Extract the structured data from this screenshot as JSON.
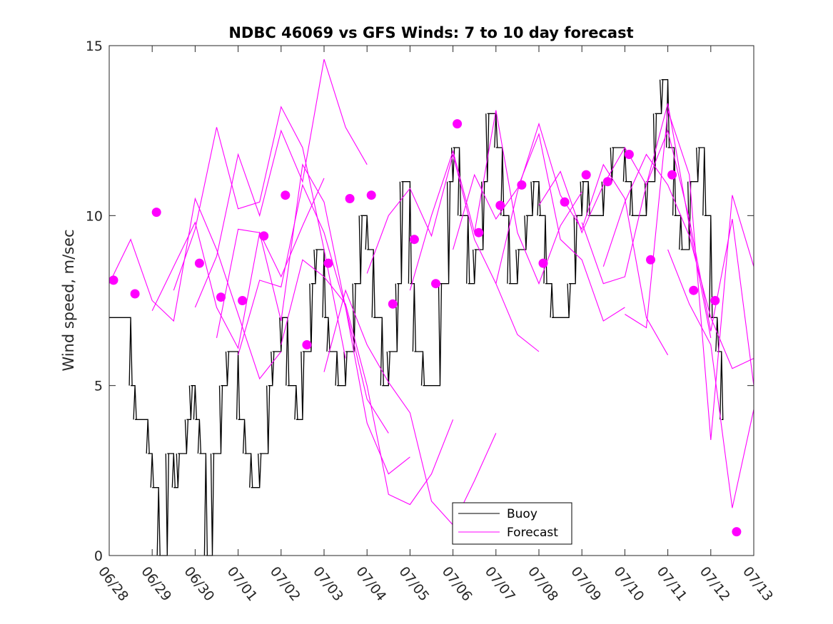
{
  "chart_data": {
    "type": "line",
    "title": "NDBC 46069 vs GFS Winds: 7 to 10 day forecast",
    "ylabel": "Wind speed, m/sec",
    "xlabel": "",
    "xlim": [
      0,
      15
    ],
    "ylim": [
      0,
      15
    ],
    "x_unit": "days since 06/28",
    "xticks": [
      "06/28",
      "06/29",
      "06/30",
      "07/01",
      "07/02",
      "07/03",
      "07/04",
      "07/05",
      "07/06",
      "07/07",
      "07/08",
      "07/09",
      "07/10",
      "07/11",
      "07/12",
      "07/13"
    ],
    "yticks": [
      0,
      5,
      10,
      15
    ],
    "legend": {
      "placement": "bottom-center",
      "entries": [
        "Buoy",
        "Forecast"
      ]
    },
    "colors": {
      "buoy": "#000000",
      "forecast": "#ff00ff"
    },
    "buoy": {
      "name": "Buoy",
      "x": [
        0,
        0.5,
        0.6,
        0.9,
        1.0,
        1.15,
        1.35,
        1.5,
        1.6,
        1.8,
        1.9,
        2.0,
        2.1,
        2.25,
        2.4,
        2.6,
        2.75,
        3.0,
        3.15,
        3.3,
        3.5,
        3.7,
        3.8,
        4.0,
        4.15,
        4.35,
        4.5,
        4.7,
        4.8,
        5.0,
        5.1,
        5.3,
        5.5,
        5.7,
        5.85,
        6.0,
        6.15,
        6.35,
        6.5,
        6.7,
        6.8,
        7.0,
        7.1,
        7.3,
        7.5,
        7.7,
        7.9,
        8.0,
        8.15,
        8.35,
        8.5,
        8.7,
        8.8,
        9.0,
        9.15,
        9.3,
        9.5,
        9.7,
        9.85,
        10.0,
        10.15,
        10.3,
        10.5,
        10.7,
        10.85,
        11.0,
        11.15,
        11.3,
        11.5,
        11.7,
        11.85,
        12.0,
        12.15,
        12.3,
        12.5,
        12.7,
        12.85,
        13.0,
        13.15,
        13.3,
        13.5,
        13.7,
        13.85,
        14.0,
        14.15,
        14.25
      ],
      "y": [
        7,
        5,
        4,
        3,
        2,
        0,
        3,
        2,
        3,
        4,
        5,
        4,
        3,
        0,
        3,
        5,
        6,
        4,
        3,
        2,
        3,
        5,
        6,
        7,
        5,
        4,
        6,
        8,
        9,
        7,
        6,
        5,
        6,
        8,
        10,
        9,
        7,
        5,
        6,
        8,
        11,
        8,
        6,
        5,
        5,
        8,
        11,
        12,
        10,
        8,
        9,
        11,
        13,
        12,
        10,
        8,
        9,
        10,
        11,
        10,
        8,
        7,
        7,
        8,
        10,
        11,
        10,
        10,
        11,
        12,
        12,
        11,
        10,
        10,
        11,
        13,
        14,
        12,
        10,
        9,
        11,
        12,
        10,
        7,
        6,
        4
      ]
    },
    "forecast_points": {
      "name": "Forecast",
      "x": [
        0.1,
        0.6,
        1.1,
        2.1,
        2.6,
        3.1,
        3.6,
        4.1,
        4.6,
        5.1,
        5.6,
        6.1,
        6.6,
        7.1,
        7.6,
        8.1,
        8.6,
        9.1,
        9.6,
        10.1,
        10.6,
        11.1,
        11.6,
        12.1,
        12.6,
        13.1,
        13.6,
        14.1,
        14.6
      ],
      "y": [
        8.1,
        7.7,
        10.1,
        8.6,
        7.6,
        7.5,
        9.4,
        10.6,
        6.2,
        8.6,
        10.5,
        10.6,
        7.4,
        9.3,
        8.0,
        12.7,
        9.5,
        10.3,
        10.9,
        8.6,
        10.4,
        11.2,
        11.0,
        11.8,
        8.7,
        11.2,
        7.8,
        7.5,
        0.7
      ]
    },
    "forecast_runs": [
      {
        "x": [
          0.0,
          0.5,
          1.0,
          1.5,
          2.0,
          2.5,
          3.0,
          3.5,
          4.0
        ],
        "y": [
          8.0,
          9.3,
          7.5,
          6.9,
          10.5,
          9.0,
          7.1,
          5.2,
          6.0
        ]
      },
      {
        "x": [
          1.0,
          1.5,
          2.0,
          2.5,
          3.0,
          3.5,
          4.0,
          4.5,
          5.0
        ],
        "y": [
          7.2,
          8.5,
          9.8,
          7.3,
          6.1,
          9.5,
          8.2,
          9.7,
          11.1
        ]
      },
      {
        "x": [
          1.5,
          2.0,
          2.5,
          3.0,
          3.5,
          4.0,
          4.5,
          5.0,
          5.5
        ],
        "y": [
          7.8,
          9.6,
          12.6,
          10.2,
          10.4,
          13.2,
          12.0,
          9.0,
          5.8
        ]
      },
      {
        "x": [
          2.0,
          2.5,
          3.0,
          3.5,
          4.0,
          4.5,
          5.0,
          5.5,
          6.0
        ],
        "y": [
          7.3,
          8.8,
          11.8,
          10.0,
          12.5,
          11.0,
          14.6,
          12.6,
          11.5
        ]
      },
      {
        "x": [
          2.5,
          3.0,
          3.5,
          4.0,
          4.5,
          5.0,
          5.5,
          6.0,
          6.5
        ],
        "y": [
          6.4,
          9.6,
          9.5,
          6.9,
          11.5,
          10.4,
          7.3,
          4.6,
          3.6
        ]
      },
      {
        "x": [
          3.0,
          3.5,
          4.0,
          4.5,
          5.0,
          5.5,
          6.0,
          6.5,
          7.0
        ],
        "y": [
          5.9,
          8.1,
          7.9,
          10.9,
          9.5,
          7.3,
          3.9,
          2.4,
          2.9
        ]
      },
      {
        "x": [
          4.0,
          4.5,
          5.0,
          5.5,
          6.0,
          6.5,
          7.0,
          7.5,
          8.0
        ],
        "y": [
          6.2,
          8.7,
          8.2,
          7.4,
          5.0,
          1.8,
          1.5,
          2.4,
          4.0
        ]
      },
      {
        "x": [
          5.0,
          5.5,
          6.0,
          6.5,
          7.0,
          7.5,
          8.0,
          8.5,
          9.0
        ],
        "y": [
          5.4,
          7.8,
          6.2,
          5.1,
          4.2,
          1.6,
          0.9,
          2.2,
          3.6
        ]
      },
      {
        "x": [
          6.0,
          6.5,
          7.0,
          7.5,
          8.0,
          8.5,
          9.0,
          9.5,
          10.0
        ],
        "y": [
          8.3,
          10.0,
          10.8,
          9.4,
          11.8,
          9.3,
          8.0,
          6.5,
          6.0
        ]
      },
      {
        "x": [
          7.0,
          7.5,
          8.0,
          8.5,
          9.0,
          9.5,
          10.0,
          10.5,
          11.0
        ],
        "y": [
          7.8,
          10.0,
          11.9,
          9.5,
          13.1,
          9.5,
          8.0,
          9.7,
          10.7
        ]
      },
      {
        "x": [
          8.0,
          8.5,
          9.0,
          9.5,
          10.0,
          10.5,
          11.0,
          11.5,
          12.0
        ],
        "y": [
          9.0,
          11.2,
          9.9,
          10.8,
          12.4,
          9.3,
          8.7,
          6.9,
          7.3
        ]
      },
      {
        "x": [
          9.0,
          9.5,
          10.0,
          10.5,
          11.0,
          11.5,
          12.0,
          12.5,
          13.0
        ],
        "y": [
          8.0,
          10.7,
          12.7,
          10.6,
          9.6,
          11.5,
          10.5,
          7.0,
          5.9
        ]
      },
      {
        "x": [
          10.0,
          10.5,
          11.0,
          11.5,
          12.0,
          12.5,
          13.0,
          13.5,
          14.0
        ],
        "y": [
          10.3,
          11.3,
          9.5,
          10.9,
          12.0,
          10.9,
          13.3,
          9.7,
          6.4
        ]
      },
      {
        "x": [
          11.0,
          11.5,
          12.0,
          12.5,
          13.0,
          13.5,
          14.0,
          14.5,
          15.0
        ],
        "y": [
          9.8,
          8.0,
          8.2,
          10.9,
          12.5,
          9.9,
          6.6,
          9.9,
          5.0
        ]
      },
      {
        "x": [
          11.5,
          12.0,
          12.5,
          13.0,
          13.5,
          14.0,
          14.5,
          15.0
        ],
        "y": [
          8.5,
          10.4,
          11.8,
          10.9,
          9.4,
          7.0,
          5.5,
          5.8
        ]
      },
      {
        "x": [
          12.0,
          12.5,
          13.0,
          13.5,
          14.0,
          14.5,
          15.0
        ],
        "y": [
          7.1,
          6.7,
          13.1,
          11.2,
          3.4,
          10.6,
          8.5
        ]
      },
      {
        "x": [
          13.0,
          13.5,
          14.0,
          14.5,
          15.0
        ],
        "y": [
          9.0,
          7.4,
          6.2,
          1.4,
          4.3
        ]
      }
    ]
  }
}
